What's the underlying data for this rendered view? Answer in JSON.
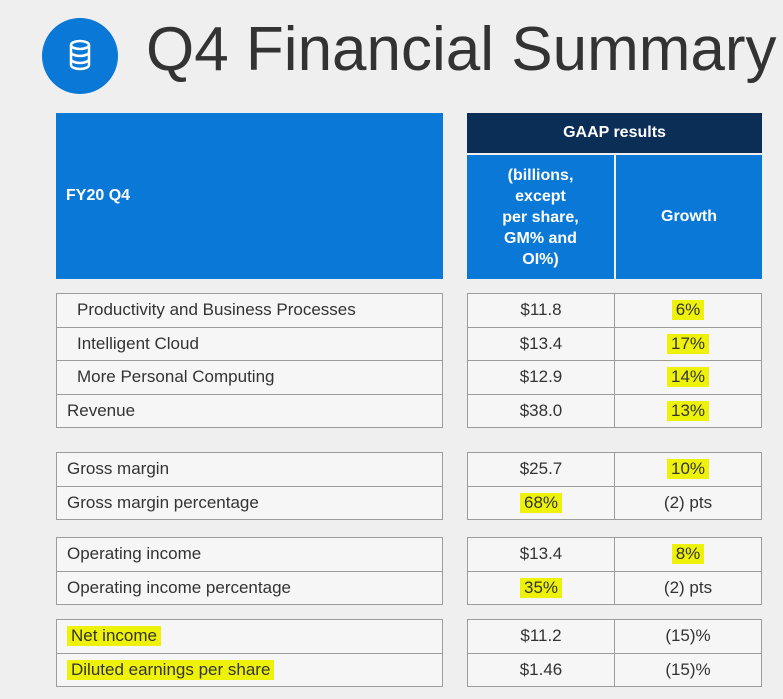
{
  "title": "Q4 Financial Summary",
  "table": {
    "header": {
      "period": "FY20 Q4",
      "group": "GAAP results",
      "unit_lines": [
        "(billions,",
        "except",
        "per share,",
        "GM% and",
        "OI%)"
      ],
      "growth": "Growth"
    },
    "groups": [
      [
        [
          "Productivity and Business Processes",
          "$11.8",
          "6%"
        ],
        [
          "Intelligent Cloud",
          "$13.4",
          "17%"
        ],
        [
          "More Personal Computing",
          "$12.9",
          "14%"
        ],
        [
          "Revenue",
          "$38.0",
          "13%"
        ]
      ],
      [
        [
          "Gross margin",
          "$25.7",
          "10%"
        ],
        [
          "Gross margin percentage",
          "68%",
          "(2) pts"
        ]
      ],
      [
        [
          "Operating income",
          "$13.4",
          "8%"
        ],
        [
          "Operating income percentage",
          "35%",
          "(2) pts"
        ]
      ],
      [
        [
          "Net income",
          "$11.2",
          "(15)%"
        ],
        [
          "Diluted earnings per share",
          "$1.46",
          "(15)%"
        ]
      ]
    ]
  }
}
